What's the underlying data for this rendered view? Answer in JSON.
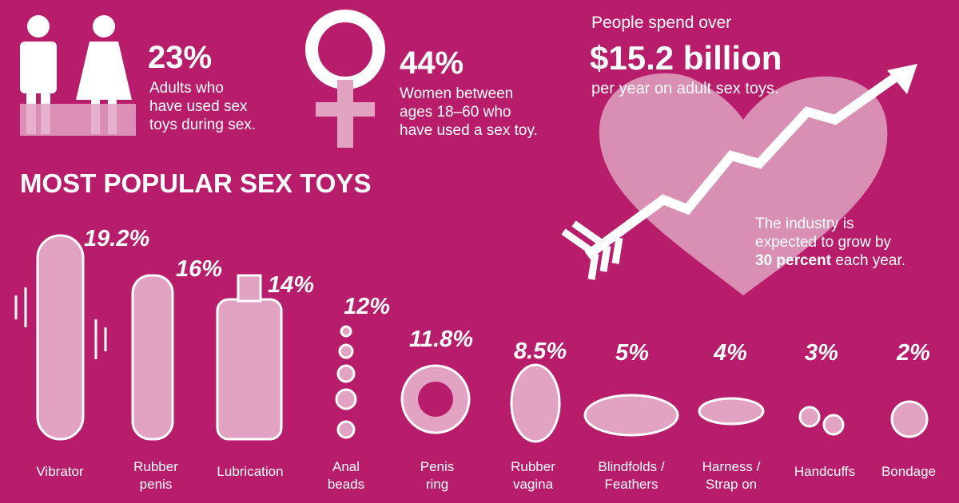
{
  "stats": [
    {
      "value": "23%",
      "lines": [
        "Adults who",
        "have used sex",
        "toys during sex."
      ]
    },
    {
      "value": "44%",
      "lines": [
        "Women between",
        "ages 18–60 who",
        "have used a sex toy."
      ]
    }
  ],
  "spending": {
    "lead": "People spend over",
    "amount": "$15.2 billion",
    "tail": "per year on adult sex toys."
  },
  "growth": {
    "lines": [
      "The industry is",
      "expected to grow by"
    ],
    "emphasis": "30 percent",
    "after": "each year."
  },
  "section_title": "MOST POPULAR SEX TOYS",
  "toys": [
    {
      "percent": "19.2%",
      "label": [
        "Vibrator"
      ]
    },
    {
      "percent": "16%",
      "label": [
        "Rubber",
        "penis"
      ]
    },
    {
      "percent": "14%",
      "label": [
        "Lubrication"
      ]
    },
    {
      "percent": "12%",
      "label": [
        "Anal",
        "beads"
      ]
    },
    {
      "percent": "11.8%",
      "label": [
        "Penis",
        "ring"
      ]
    },
    {
      "percent": "8.5%",
      "label": [
        "Rubber",
        "vagina"
      ]
    },
    {
      "percent": "5%",
      "label": [
        "Blindfolds /",
        "Feathers"
      ]
    },
    {
      "percent": "4%",
      "label": [
        "Harness /",
        "Strap on"
      ]
    },
    {
      "percent": "3%",
      "label": [
        "Handcuffs"
      ]
    },
    {
      "percent": "2%",
      "label": [
        "Bondage"
      ]
    }
  ]
}
